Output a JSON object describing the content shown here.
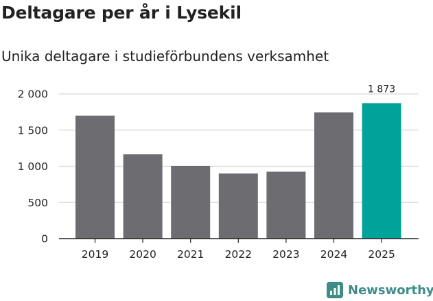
{
  "title": "Deltagare per år i Lysekil",
  "subtitle": "Unika deltagare i studieförbundens verksamhet",
  "brand": {
    "name": "Newsworthy",
    "color": "#3d8c86"
  },
  "chart_data": {
    "type": "bar",
    "categories": [
      "2019",
      "2020",
      "2021",
      "2022",
      "2023",
      "2024",
      "2025"
    ],
    "values": [
      1700,
      1165,
      1005,
      900,
      925,
      1745,
      1873
    ],
    "ylim": [
      0,
      2000
    ],
    "yticks": [
      0,
      500,
      1000,
      1500,
      2000
    ],
    "ytick_labels": [
      "0",
      "500",
      "1 000",
      "1 500",
      "2 000"
    ],
    "grid": true,
    "colors": {
      "default": "#6d6c71",
      "highlight": "#00a299",
      "grid": "#dddddd",
      "axis": "#222222"
    },
    "highlight_index": 6,
    "data_labels": [
      {
        "index": 6,
        "text": "1 873"
      }
    ]
  }
}
